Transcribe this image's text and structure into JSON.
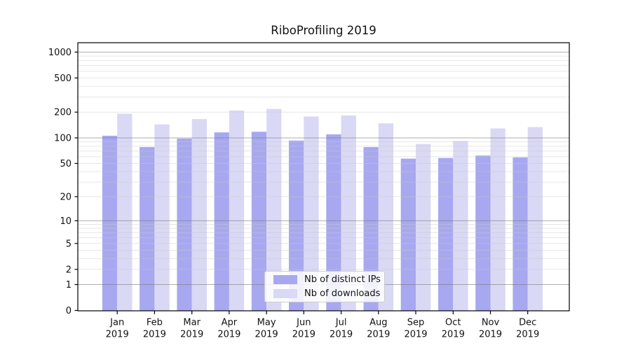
{
  "chart_data": {
    "type": "bar",
    "title": "RiboProfiling 2019",
    "yscale": "log1p",
    "ylim": [
      0,
      1250
    ],
    "y_ticks": [
      0,
      1,
      2,
      5,
      10,
      20,
      50,
      100,
      200,
      500,
      1000
    ],
    "categories": [
      {
        "month": "Jan",
        "year": "2019"
      },
      {
        "month": "Feb",
        "year": "2019"
      },
      {
        "month": "Mar",
        "year": "2019"
      },
      {
        "month": "Apr",
        "year": "2019"
      },
      {
        "month": "May",
        "year": "2019"
      },
      {
        "month": "Jun",
        "year": "2019"
      },
      {
        "month": "Jul",
        "year": "2019"
      },
      {
        "month": "Aug",
        "year": "2019"
      },
      {
        "month": "Sep",
        "year": "2019"
      },
      {
        "month": "Oct",
        "year": "2019"
      },
      {
        "month": "Nov",
        "year": "2019"
      },
      {
        "month": "Dec",
        "year": "2019"
      }
    ],
    "series": [
      {
        "name": "Nb of distinct IPs",
        "color": "#a8a8f0",
        "values": [
          106,
          78,
          98,
          116,
          118,
          93,
          110,
          78,
          57,
          58,
          62,
          59
        ]
      },
      {
        "name": "Nb of downloads",
        "color": "#d9d9f5",
        "values": [
          192,
          144,
          166,
          209,
          218,
          178,
          183,
          148,
          85,
          92,
          129,
          134
        ]
      }
    ],
    "grid": {
      "major_values": [
        1,
        10,
        100,
        1000
      ],
      "minor_decades": [
        1,
        10,
        100
      ],
      "minor_multiples": [
        2,
        3,
        4,
        5,
        6,
        7,
        8,
        9
      ],
      "major_color": "rgba(120,120,120,0.6)",
      "minor_color": "rgba(200,200,200,0.45)"
    },
    "axis_color": "#000000",
    "tick_label_color": "#111111",
    "legend_position": "lower-center"
  }
}
